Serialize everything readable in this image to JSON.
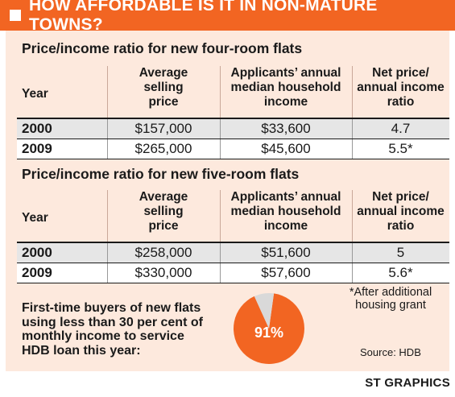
{
  "header": {
    "title": "HOW AFFORDABLE IS IT IN NON-MATURE TOWNS?"
  },
  "colors": {
    "accent": "#f26522",
    "panel": "#fde9dd",
    "pie_small": "#d9d9d9"
  },
  "chart_data": [
    {
      "type": "table",
      "title": "Price/income ratio for new four-room flats",
      "columns": [
        "Year",
        "Average selling price",
        "Applicants' annual median household income",
        "Net price/ annual income ratio"
      ],
      "rows": [
        [
          "2000",
          "$157,000",
          "$33,600",
          "4.7"
        ],
        [
          "2009",
          "$265,000",
          "$45,600",
          "5.5*"
        ]
      ]
    },
    {
      "type": "table",
      "title": "Price/income ratio for new five-room flats",
      "columns": [
        "Year",
        "Average selling price",
        "Applicants' annual median household income",
        "Net price/ annual income ratio"
      ],
      "rows": [
        [
          "2000",
          "$258,000",
          "$51,600",
          "5"
        ],
        [
          "2009",
          "$330,000",
          "$57,600",
          "5.6*"
        ]
      ]
    },
    {
      "type": "pie",
      "title": "First-time buyers of new flats using less than 30 per cent of monthly income to service HDB loan this year:",
      "slices": [
        {
          "label": "91%",
          "value": 91
        },
        {
          "label": "",
          "value": 9
        }
      ]
    }
  ],
  "headers": {
    "year": "Year",
    "c1": [
      "Average",
      "selling",
      "price"
    ],
    "c2": [
      "Applicants’ annual",
      "median household",
      "income"
    ],
    "c3": [
      "Net price/",
      "annual income",
      "ratio"
    ]
  },
  "texts": {
    "four_title": "Price/income ratio for new four-room flats",
    "five_title": "Price/income ratio for new five-room flats",
    "ftb": "First-time buyers of new flats using less than 30 per cent of monthly income to service HDB loan this year:",
    "pie_label": "91%",
    "note": "*After additional housing grant",
    "source": "Source: HDB",
    "credit": "ST GRAPHICS"
  }
}
